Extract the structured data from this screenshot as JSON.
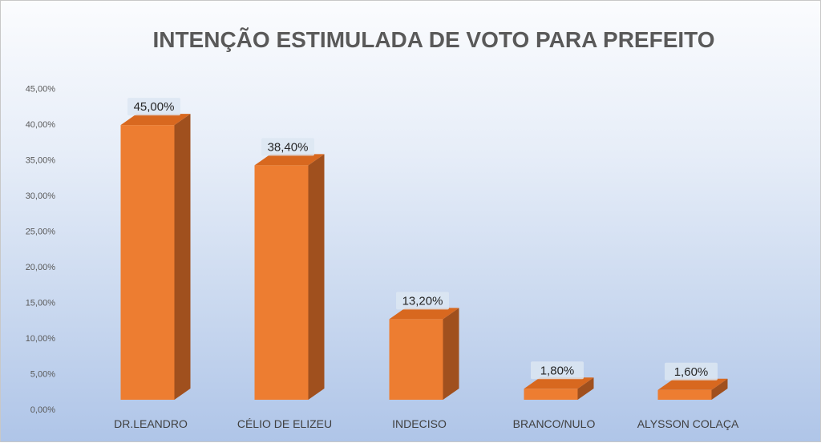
{
  "chart_data": {
    "type": "bar",
    "title": "INTENÇÃO ESTIMULADA DE VOTO PARA PREFEITO",
    "xlabel": "",
    "ylabel": "",
    "categories": [
      "DR.LEANDRO",
      "CÉLIO DE ELIZEU",
      "INDECISO",
      "BRANCO/NULO",
      "ALYSSON COLAÇA"
    ],
    "values": [
      45.0,
      38.4,
      13.2,
      1.8,
      1.6
    ],
    "data_labels": [
      "45,00%",
      "38,40%",
      "13,20%",
      "1,80%",
      "1,60%"
    ],
    "yticks": [
      "0,00%",
      "5,00%",
      "10,00%",
      "15,00%",
      "20,00%",
      "25,00%",
      "30,00%",
      "35,00%",
      "40,00%",
      "45,00%"
    ],
    "ylim": [
      0,
      45
    ],
    "grid": false,
    "legend": "none",
    "style": "3d-column",
    "colors": {
      "bar_front": "#ed7d31",
      "bar_side": "#a0501e",
      "bar_top": "#d8681f",
      "label_bg": "#dce6f2"
    }
  }
}
